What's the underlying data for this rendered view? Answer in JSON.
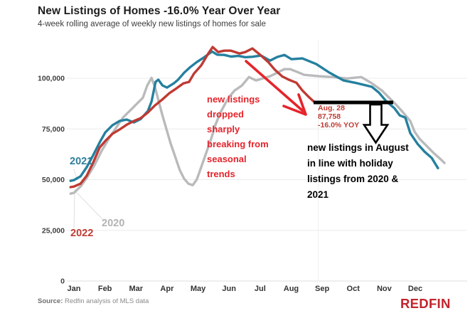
{
  "header": {
    "title": "New Listings of Homes -16.0% Year Over Year",
    "subtitle": "4-week rolling average of weekly new listings of homes for sale"
  },
  "annotations": {
    "seasonal_note": "new listings dropped sharply breaking from seasonal trends",
    "holiday_note": "new listings in August in line with holiday listings from 2020 & 2021",
    "point_label": {
      "date": "Aug. 28",
      "value": "87,758",
      "yoy": "-16.0% YOY"
    }
  },
  "footer": {
    "source_label": "Source:",
    "source_text": " Redfin analysis of MLS data",
    "brand": "REDFIN"
  },
  "colors": {
    "series_2020": "#b9babc",
    "series_2021": "#24809f",
    "series_2022": "#bf3a33",
    "annotation_red": "#e5242b",
    "annotation_black": "#000000",
    "grid": "#ececec",
    "axis_text": "#3f3f3f",
    "brand_red": "#c3242b"
  },
  "chart_data": {
    "type": "line",
    "title": "New Listings of Homes -16.0% Year Over Year",
    "subtitle": "4-week rolling average of weekly new listings of homes for sale",
    "xlabel": "",
    "ylabel": "",
    "x_unit": "month (1 = Jan 1, 13 = Dec 31)",
    "x_ticks": [
      "Jan",
      "Feb",
      "Mar",
      "Apr",
      "May",
      "Jun",
      "Jul",
      "Aug",
      "Sep",
      "Oct",
      "Nov",
      "Dec"
    ],
    "y_ticks": [
      {
        "value": 0,
        "label": "0"
      },
      {
        "value": 25000,
        "label": "25,000"
      },
      {
        "value": 50000,
        "label": "50,000"
      },
      {
        "value": 75000,
        "label": "75,000"
      },
      {
        "value": 100000,
        "label": "100,000"
      }
    ],
    "ylim": [
      0,
      118000
    ],
    "grid": "horizontal",
    "highlight_vline_month": 8.87,
    "highlight_point": {
      "series": "2022",
      "date": "Aug. 28",
      "value": 87758,
      "yoy_pct": -16.0
    },
    "series": [
      {
        "name": "2020",
        "color": "#b9babc",
        "points": [
          [
            0.89,
            43100
          ],
          [
            1.0,
            43500
          ],
          [
            1.21,
            46600
          ],
          [
            1.41,
            50800
          ],
          [
            1.66,
            57100
          ],
          [
            1.89,
            64100
          ],
          [
            2.12,
            70100
          ],
          [
            2.35,
            75400
          ],
          [
            2.58,
            80600
          ],
          [
            2.81,
            84100
          ],
          [
            3.04,
            87600
          ],
          [
            3.22,
            90400
          ],
          [
            3.36,
            96400
          ],
          [
            3.5,
            100200
          ],
          [
            3.61,
            95700
          ],
          [
            3.73,
            88700
          ],
          [
            3.84,
            82400
          ],
          [
            3.98,
            75000
          ],
          [
            4.12,
            67700
          ],
          [
            4.28,
            60600
          ],
          [
            4.41,
            54700
          ],
          [
            4.55,
            50500
          ],
          [
            4.69,
            48000
          ],
          [
            4.83,
            47300
          ],
          [
            4.96,
            50100
          ],
          [
            5.1,
            56100
          ],
          [
            5.26,
            63100
          ],
          [
            5.42,
            70100
          ],
          [
            5.56,
            77100
          ],
          [
            5.72,
            83100
          ],
          [
            5.88,
            87600
          ],
          [
            6.02,
            91200
          ],
          [
            6.18,
            94000
          ],
          [
            6.41,
            96400
          ],
          [
            6.64,
            100600
          ],
          [
            6.87,
            98900
          ],
          [
            7.1,
            100000
          ],
          [
            7.32,
            101000
          ],
          [
            7.55,
            102700
          ],
          [
            7.78,
            104500
          ],
          [
            7.97,
            104500
          ],
          [
            8.2,
            103100
          ],
          [
            8.42,
            101700
          ],
          [
            8.88,
            101000
          ],
          [
            9.34,
            100600
          ],
          [
            9.8,
            99900
          ],
          [
            10.26,
            100600
          ],
          [
            10.6,
            97500
          ],
          [
            10.92,
            94000
          ],
          [
            11.15,
            90500
          ],
          [
            11.38,
            87000
          ],
          [
            11.61,
            83100
          ],
          [
            11.84,
            78900
          ],
          [
            11.98,
            73600
          ],
          [
            12.14,
            70100
          ],
          [
            12.37,
            66600
          ],
          [
            12.6,
            63000
          ],
          [
            12.83,
            59900
          ],
          [
            12.94,
            58200
          ]
        ]
      },
      {
        "name": "2021",
        "color": "#24809f",
        "points": [
          [
            0.89,
            49400
          ],
          [
            1.0,
            49800
          ],
          [
            1.21,
            51600
          ],
          [
            1.41,
            56100
          ],
          [
            1.62,
            62100
          ],
          [
            1.83,
            68400
          ],
          [
            2.01,
            73300
          ],
          [
            2.24,
            76800
          ],
          [
            2.47,
            78900
          ],
          [
            2.7,
            79600
          ],
          [
            2.93,
            78200
          ],
          [
            3.15,
            79900
          ],
          [
            3.38,
            83800
          ],
          [
            3.5,
            88500
          ],
          [
            3.63,
            98200
          ],
          [
            3.72,
            99300
          ],
          [
            3.85,
            96500
          ],
          [
            4.0,
            95400
          ],
          [
            4.22,
            97500
          ],
          [
            4.35,
            99200
          ],
          [
            4.55,
            102700
          ],
          [
            4.75,
            105500
          ],
          [
            4.96,
            108000
          ],
          [
            5.2,
            110400
          ],
          [
            5.45,
            113200
          ],
          [
            5.62,
            111600
          ],
          [
            5.84,
            111500
          ],
          [
            6.06,
            110700
          ],
          [
            6.3,
            111000
          ],
          [
            6.52,
            110400
          ],
          [
            6.75,
            110600
          ],
          [
            7.03,
            111200
          ],
          [
            7.32,
            108700
          ],
          [
            7.55,
            110500
          ],
          [
            7.78,
            111500
          ],
          [
            8.01,
            109400
          ],
          [
            8.36,
            109800
          ],
          [
            8.81,
            107000
          ],
          [
            9.23,
            102800
          ],
          [
            9.69,
            98900
          ],
          [
            10.14,
            97500
          ],
          [
            10.6,
            95800
          ],
          [
            10.83,
            92900
          ],
          [
            11.06,
            88700
          ],
          [
            11.33,
            85200
          ],
          [
            11.5,
            81700
          ],
          [
            11.68,
            80600
          ],
          [
            11.84,
            72900
          ],
          [
            12.07,
            67700
          ],
          [
            12.3,
            63800
          ],
          [
            12.53,
            60700
          ],
          [
            12.73,
            55700
          ]
        ]
      },
      {
        "name": "2022",
        "color": "#bf3a33",
        "points": [
          [
            0.89,
            46300
          ],
          [
            1.0,
            46600
          ],
          [
            1.21,
            48000
          ],
          [
            1.41,
            51900
          ],
          [
            1.62,
            58500
          ],
          [
            1.83,
            65900
          ],
          [
            2.01,
            69100
          ],
          [
            2.24,
            72600
          ],
          [
            2.47,
            74700
          ],
          [
            2.7,
            77100
          ],
          [
            2.93,
            78900
          ],
          [
            3.15,
            80300
          ],
          [
            3.38,
            83100
          ],
          [
            3.61,
            86600
          ],
          [
            3.84,
            89400
          ],
          [
            4.07,
            92600
          ],
          [
            4.3,
            95000
          ],
          [
            4.53,
            97500
          ],
          [
            4.71,
            98200
          ],
          [
            4.87,
            102400
          ],
          [
            5.1,
            106300
          ],
          [
            5.33,
            112200
          ],
          [
            5.47,
            115400
          ],
          [
            5.65,
            112900
          ],
          [
            5.84,
            113600
          ],
          [
            6.06,
            113600
          ],
          [
            6.34,
            112200
          ],
          [
            6.52,
            112900
          ],
          [
            6.75,
            114700
          ],
          [
            7.03,
            111200
          ],
          [
            7.26,
            108000
          ],
          [
            7.48,
            104100
          ],
          [
            7.71,
            100900
          ],
          [
            7.94,
            99200
          ],
          [
            8.17,
            97800
          ],
          [
            8.36,
            94000
          ],
          [
            8.54,
            91200
          ],
          [
            8.74,
            88400
          ],
          [
            8.87,
            87758
          ]
        ]
      }
    ],
    "series_end_labels": [
      "2020",
      "2021",
      "2022"
    ],
    "legend_position": "inline-labels"
  }
}
